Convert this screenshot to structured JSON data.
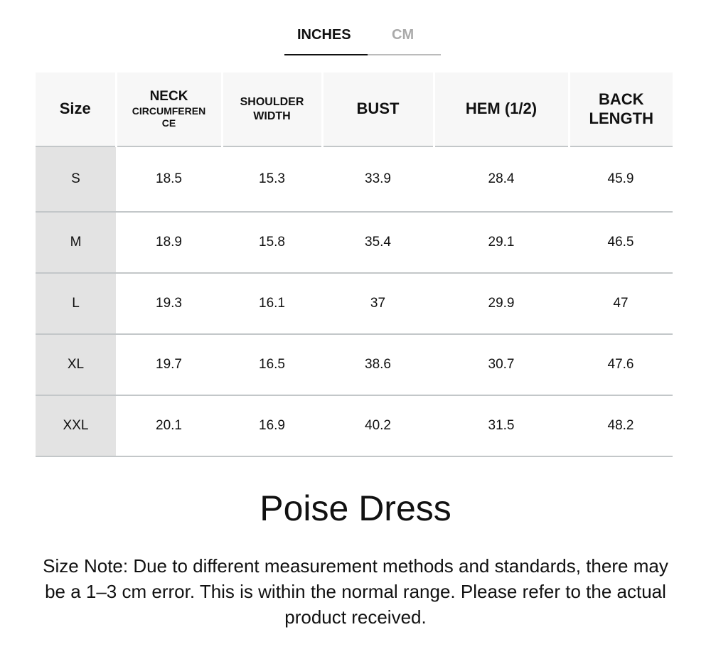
{
  "tabs": [
    {
      "label": "INCHES",
      "active": true
    },
    {
      "label": "CM",
      "active": false
    }
  ],
  "table": {
    "headers": [
      {
        "line1": "Size"
      },
      {
        "line1": "NECK",
        "line2": "CIRCUMFEREN",
        "line3": "CE"
      },
      {
        "line1": "SHOULDER",
        "line2": "WIDTH"
      },
      {
        "line1": "BUST"
      },
      {
        "line1": "HEM (1/2)"
      },
      {
        "line1": "BACK",
        "line2": "LENGTH"
      }
    ],
    "rows": [
      [
        "S",
        "18.5",
        "15.3",
        "33.9",
        "28.4",
        "45.9"
      ],
      [
        "M",
        "18.9",
        "15.8",
        "35.4",
        "29.1",
        "46.5"
      ],
      [
        "L",
        "19.3",
        "16.1",
        "37",
        "29.9",
        "47"
      ],
      [
        "XL",
        "19.7",
        "16.5",
        "38.6",
        "30.7",
        "47.6"
      ],
      [
        "XXL",
        "20.1",
        "16.9",
        "40.2",
        "31.5",
        "48.2"
      ]
    ]
  },
  "product_title": "Poise Dress",
  "size_note": "Size Note: Due to different measurement methods and standards, there may be a 1–3 cm error. This is within the normal range. Please refer to the actual product received."
}
